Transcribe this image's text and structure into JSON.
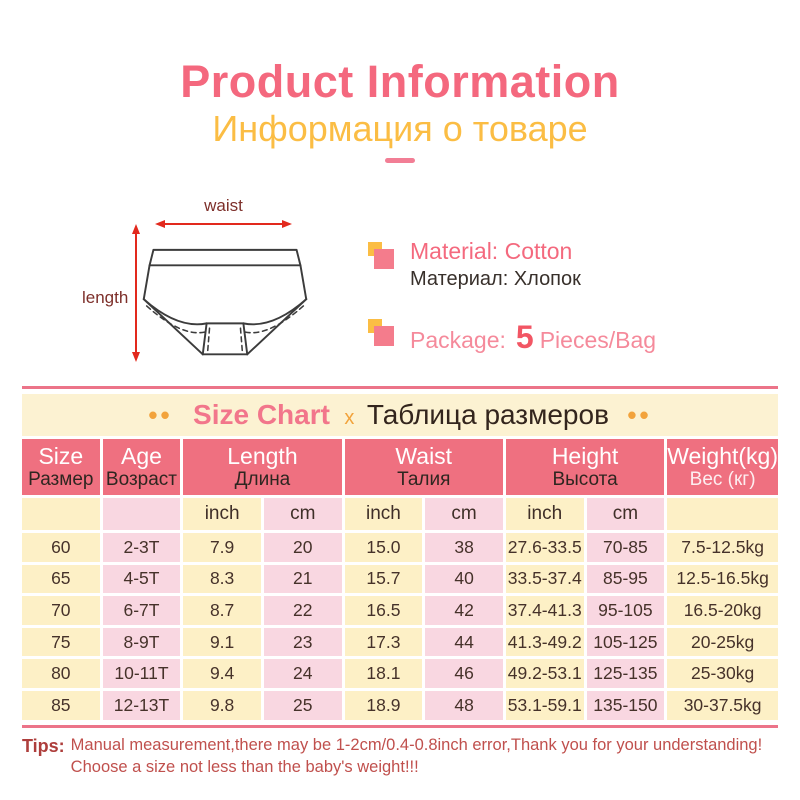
{
  "header": {
    "title": "Product Information",
    "subtitle": "Информация о товаре"
  },
  "diagram": {
    "waist_label": "waist",
    "length_label": "length"
  },
  "info": {
    "material": {
      "en": "Material: Cotton",
      "ru": "Материал: Хлопок"
    },
    "package": {
      "label": "Package:",
      "quantity": "5",
      "unit": "Pieces/Bag"
    }
  },
  "size_chart": {
    "banner": {
      "dots_left": "••",
      "title_en": "Size Chart",
      "separator": "x",
      "title_ru": "Таблица размеров",
      "dots_right": "••"
    },
    "headers": [
      {
        "en": "Size",
        "ru": "Размер",
        "span": 1,
        "ru_white": false
      },
      {
        "en": "Age",
        "ru": "Возраст",
        "span": 1,
        "ru_white": false
      },
      {
        "en": "Length",
        "ru": "Длина",
        "span": 2,
        "ru_white": false
      },
      {
        "en": "Waist",
        "ru": "Талия",
        "span": 2,
        "ru_white": false
      },
      {
        "en": "Height",
        "ru": "Высота",
        "span": 2,
        "ru_white": false
      },
      {
        "en": "Weight(kg)",
        "ru": "Вес (кг)",
        "span": 1,
        "ru_white": true
      }
    ],
    "units_row": [
      "",
      "",
      "inch",
      "cm",
      "inch",
      "cm",
      "inch",
      "cm",
      ""
    ],
    "rows": [
      [
        "60",
        "2-3T",
        "7.9",
        "20",
        "15.0",
        "38",
        "27.6-33.5",
        "70-85",
        "7.5-12.5kg"
      ],
      [
        "65",
        "4-5T",
        "8.3",
        "21",
        "15.7",
        "40",
        "33.5-37.4",
        "85-95",
        "12.5-16.5kg"
      ],
      [
        "70",
        "6-7T",
        "8.7",
        "22",
        "16.5",
        "42",
        "37.4-41.3",
        "95-105",
        "16.5-20kg"
      ],
      [
        "75",
        "8-9T",
        "9.1",
        "23",
        "17.3",
        "44",
        "41.3-49.2",
        "105-125",
        "20-25kg"
      ],
      [
        "80",
        "10-11T",
        "9.4",
        "24",
        "18.1",
        "46",
        "49.2-53.1",
        "125-135",
        "25-30kg"
      ],
      [
        "85",
        "12-13T",
        "9.8",
        "25",
        "18.9",
        "48",
        "53.1-59.1",
        "135-150",
        "30-37.5kg"
      ]
    ]
  },
  "tips": {
    "label": "Tips:",
    "line1": "Manual measurement,there may be 1-2cm/0.4-0.8inch error,Thank you for your understanding!",
    "line2": "Choose a size not less than the baby's weight!!!"
  },
  "colors": {
    "title_pink": "#f4687e",
    "subtitle_yellow": "#fbbd44",
    "header_bg": "#ef7080",
    "cell_cream": "#fdf0c6",
    "cell_pink": "#f9d7e1",
    "rule_pink": "#ec7489",
    "banner_bg": "#fcf2d2",
    "accent_orange": "#f2a33c",
    "tips_red": "#c0504d",
    "arrow_red": "#e2291d"
  }
}
